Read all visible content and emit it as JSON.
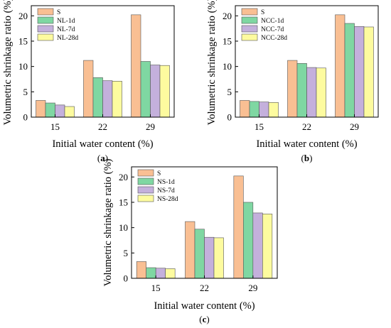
{
  "colors": [
    "#f9bf93",
    "#7fd7a2",
    "#c4b0dc",
    "#fdfb9f"
  ],
  "chart_data": [
    {
      "type": "bar",
      "panel": "(a)",
      "xlabel": "Initial water content (%)",
      "ylabel": "Volumetric shrinkage ratio (%)",
      "categories": [
        "15",
        "22",
        "29"
      ],
      "ylim": [
        0,
        22
      ],
      "yticks": [
        0,
        5,
        10,
        15,
        20
      ],
      "legend_position": "top-left",
      "series": [
        {
          "name": "S",
          "values": [
            3.3,
            11.2,
            20.2
          ]
        },
        {
          "name": "NL-1d",
          "values": [
            2.8,
            7.8,
            11.0
          ]
        },
        {
          "name": "NL-7d",
          "values": [
            2.4,
            7.2,
            10.3
          ]
        },
        {
          "name": "NL-28d",
          "values": [
            2.1,
            7.1,
            10.2
          ]
        }
      ]
    },
    {
      "type": "bar",
      "panel": "(b)",
      "xlabel": "Initial water content (%)",
      "ylabel": "Volumetric shrinkage ratio (%)",
      "categories": [
        "15",
        "22",
        "29"
      ],
      "ylim": [
        0,
        22
      ],
      "yticks": [
        0,
        5,
        10,
        15,
        20
      ],
      "legend_position": "top-left",
      "series": [
        {
          "name": "S",
          "values": [
            3.3,
            11.2,
            20.2
          ]
        },
        {
          "name": "NCC-1d",
          "values": [
            3.1,
            10.6,
            18.5
          ]
        },
        {
          "name": "NCC-7d",
          "values": [
            3.0,
            9.8,
            17.9
          ]
        },
        {
          "name": "NCC-28d",
          "values": [
            2.9,
            9.7,
            17.8
          ]
        }
      ]
    },
    {
      "type": "bar",
      "panel": "(c)",
      "xlabel": "Initial water content (%)",
      "ylabel": "Volumetric shrinkage ratio (%)",
      "categories": [
        "15",
        "22",
        "29"
      ],
      "ylim": [
        0,
        22
      ],
      "yticks": [
        0,
        5,
        10,
        15,
        20
      ],
      "legend_position": "top-left",
      "series": [
        {
          "name": "S",
          "values": [
            3.3,
            11.2,
            20.2
          ]
        },
        {
          "name": "NS-1d",
          "values": [
            2.1,
            9.7,
            15.0
          ]
        },
        {
          "name": "NS-7d",
          "values": [
            2.0,
            8.1,
            12.9
          ]
        },
        {
          "name": "NS-28d",
          "values": [
            1.9,
            8.0,
            12.7
          ]
        }
      ]
    }
  ]
}
